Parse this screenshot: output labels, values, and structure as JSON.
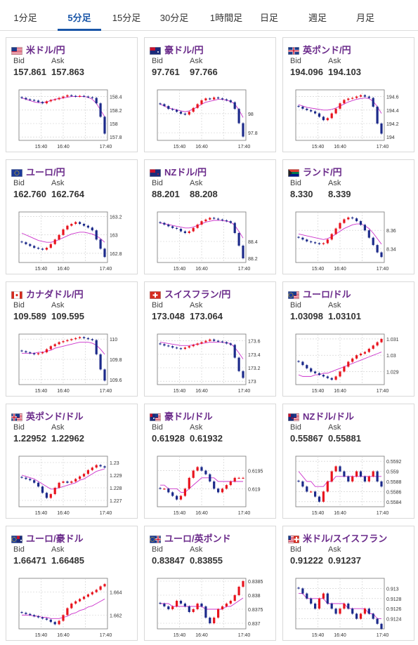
{
  "tabs": [
    "1分足",
    "5分足",
    "15分足",
    "30分足",
    "1時間足",
    "日足",
    "週足",
    "月足"
  ],
  "active_tab": 1,
  "labels": {
    "bid": "Bid",
    "ask": "Ask"
  },
  "x_ticks": [
    "15:40",
    "16:40",
    "17:40"
  ],
  "colors": {
    "up": "#e8141e",
    "down": "#1c2a8a",
    "ma": "#cc33cc",
    "ma2": "#4a90c8",
    "pair_text": "#6a2a8a",
    "active_tab": "#1a56a8"
  },
  "cards": [
    {
      "pair": "米ドル/円",
      "flag": "us-flag",
      "bid": "157.861",
      "ask": "157.863",
      "chart_data": {
        "type": "candlestick",
        "y_ticks": [
          "158.4",
          "158.2",
          "158",
          "157.8"
        ],
        "ylim": [
          157.75,
          158.5
        ],
        "ticks_v": [
          158.4,
          158.2,
          158,
          157.8
        ],
        "close": [
          158.38,
          158.36,
          158.35,
          158.34,
          158.32,
          158.3,
          158.33,
          158.35,
          158.36,
          158.38,
          158.4,
          158.42,
          158.41,
          158.4,
          158.41,
          158.4,
          158.39,
          158.38,
          158.3,
          158.1,
          157.85
        ],
        "ma": [
          158.38,
          158.36,
          158.34,
          158.32,
          158.31,
          158.31,
          158.32,
          158.34,
          158.36,
          158.37,
          158.38,
          158.39,
          158.4,
          158.4,
          158.4,
          158.4,
          158.39,
          158.36,
          158.3,
          158.2,
          158.1
        ]
      }
    },
    {
      "pair": "豪ドル/円",
      "flag": "au-flag",
      "bid": "97.761",
      "ask": "97.766",
      "chart_data": {
        "type": "candlestick",
        "y_ticks": [
          "98",
          "97.8"
        ],
        "ylim": [
          97.72,
          98.25
        ],
        "ticks_v": [
          98,
          97.8
        ],
        "close": [
          98.1,
          98.08,
          98.05,
          98.04,
          98.02,
          98.0,
          97.99,
          98.02,
          98.06,
          98.1,
          98.14,
          98.16,
          98.15,
          98.17,
          98.16,
          98.15,
          98.14,
          98.12,
          98.05,
          97.9,
          97.76
        ],
        "ma": [
          98.1,
          98.08,
          98.06,
          98.05,
          98.04,
          98.03,
          98.02,
          98.03,
          98.05,
          98.07,
          98.1,
          98.12,
          98.13,
          98.14,
          98.15,
          98.15,
          98.14,
          98.13,
          98.1,
          98.04,
          97.96
        ]
      }
    },
    {
      "pair": "英ポンド/円",
      "flag": "gb-flag",
      "bid": "194.096",
      "ask": "194.103",
      "chart_data": {
        "type": "candlestick",
        "y_ticks": [
          "194.6",
          "194.4",
          "194.2",
          "194"
        ],
        "ylim": [
          193.95,
          194.7
        ],
        "ticks_v": [
          194.6,
          194.4,
          194.2,
          194
        ],
        "close": [
          194.45,
          194.42,
          194.4,
          194.38,
          194.35,
          194.3,
          194.25,
          194.28,
          194.35,
          194.42,
          194.5,
          194.55,
          194.57,
          194.58,
          194.6,
          194.62,
          194.6,
          194.58,
          194.45,
          194.2,
          194.05
        ],
        "ma": [
          194.48,
          194.46,
          194.44,
          194.43,
          194.42,
          194.41,
          194.4,
          194.4,
          194.41,
          194.43,
          194.46,
          194.49,
          194.52,
          194.54,
          194.56,
          194.57,
          194.58,
          194.57,
          194.53,
          194.45,
          194.35
        ]
      }
    },
    {
      "pair": "ユーロ/円",
      "flag": "eu-flag",
      "bid": "162.760",
      "ask": "162.764",
      "chart_data": {
        "type": "candlestick",
        "y_ticks": [
          "163.2",
          "163",
          "162.8"
        ],
        "ylim": [
          162.7,
          163.25
        ],
        "ticks_v": [
          163.2,
          163,
          162.8
        ],
        "close": [
          162.92,
          162.9,
          162.88,
          162.86,
          162.85,
          162.84,
          162.86,
          162.9,
          162.95,
          163.0,
          163.06,
          163.1,
          163.12,
          163.14,
          163.12,
          163.1,
          163.08,
          163.05,
          162.95,
          162.85,
          162.76
        ],
        "ma": [
          163.02,
          163.0,
          162.98,
          162.96,
          162.94,
          162.93,
          162.92,
          162.92,
          162.93,
          162.95,
          162.97,
          162.99,
          163.01,
          163.02,
          163.03,
          163.03,
          163.02,
          163.01,
          162.99,
          162.96,
          162.92
        ]
      }
    },
    {
      "pair": "NZドル/円",
      "flag": "nz-flag",
      "bid": "88.201",
      "ask": "88.208",
      "chart_data": {
        "type": "candlestick",
        "y_ticks": [
          "88.4",
          "88.2"
        ],
        "ylim": [
          88.15,
          88.75
        ],
        "ticks_v": [
          88.4,
          88.2
        ],
        "close": [
          88.62,
          88.6,
          88.58,
          88.56,
          88.55,
          88.52,
          88.5,
          88.52,
          88.56,
          88.6,
          88.64,
          88.66,
          88.68,
          88.67,
          88.66,
          88.65,
          88.64,
          88.62,
          88.5,
          88.35,
          88.2
        ],
        "ma": [
          88.62,
          88.61,
          88.6,
          88.59,
          88.58,
          88.57,
          88.56,
          88.56,
          88.57,
          88.59,
          88.61,
          88.63,
          88.64,
          88.65,
          88.65,
          88.65,
          88.64,
          88.63,
          88.59,
          88.52,
          88.44
        ]
      }
    },
    {
      "pair": "ランド/円",
      "flag": "za-flag",
      "bid": "8.330",
      "ask": "8.339",
      "chart_data": {
        "type": "candlestick",
        "y_ticks": [
          "8.36",
          "8.34"
        ],
        "ylim": [
          8.325,
          8.38
        ],
        "ticks_v": [
          8.36,
          8.34
        ],
        "close": [
          8.352,
          8.35,
          8.348,
          8.347,
          8.346,
          8.345,
          8.346,
          8.35,
          8.356,
          8.362,
          8.368,
          8.372,
          8.374,
          8.373,
          8.37,
          8.366,
          8.36,
          8.352,
          8.344,
          8.336,
          8.331
        ],
        "ma": [
          8.356,
          8.355,
          8.354,
          8.353,
          8.352,
          8.351,
          8.35,
          8.351,
          8.353,
          8.356,
          8.359,
          8.362,
          8.364,
          8.366,
          8.367,
          8.367,
          8.365,
          8.362,
          8.357,
          8.351,
          8.345
        ]
      }
    },
    {
      "pair": "カナダドル/円",
      "flag": "ca-flag",
      "bid": "109.589",
      "ask": "109.595",
      "chart_data": {
        "type": "candlestick",
        "y_ticks": [
          "110",
          "109.8",
          "109.6"
        ],
        "ylim": [
          109.55,
          110.05
        ],
        "ticks_v": [
          110,
          109.8,
          109.6
        ],
        "close": [
          109.88,
          109.87,
          109.86,
          109.85,
          109.86,
          109.87,
          109.9,
          109.93,
          109.95,
          109.97,
          109.98,
          109.99,
          110.0,
          110.01,
          110.02,
          110.01,
          110.0,
          109.99,
          109.85,
          109.7,
          109.59
        ],
        "ma": [
          109.86,
          109.86,
          109.86,
          109.86,
          109.87,
          109.87,
          109.88,
          109.89,
          109.91,
          109.92,
          109.93,
          109.94,
          109.95,
          109.96,
          109.97,
          109.97,
          109.97,
          109.96,
          109.94,
          109.9,
          109.85
        ]
      }
    },
    {
      "pair": "スイスフラン/円",
      "flag": "ch-flag",
      "bid": "173.048",
      "ask": "173.064",
      "chart_data": {
        "type": "candlestick",
        "y_ticks": [
          "173.6",
          "173.4",
          "173.2",
          "173"
        ],
        "ylim": [
          172.95,
          173.7
        ],
        "ticks_v": [
          173.6,
          173.4,
          173.2,
          173
        ],
        "close": [
          173.55,
          173.53,
          173.52,
          173.5,
          173.49,
          173.48,
          173.5,
          173.52,
          173.54,
          173.56,
          173.58,
          173.6,
          173.62,
          173.6,
          173.59,
          173.58,
          173.56,
          173.54,
          173.35,
          173.15,
          173.05
        ],
        "ma": [
          173.58,
          173.57,
          173.56,
          173.55,
          173.54,
          173.53,
          173.53,
          173.53,
          173.54,
          173.55,
          173.56,
          173.57,
          173.58,
          173.58,
          173.58,
          173.58,
          173.57,
          173.56,
          173.5,
          173.42,
          173.33
        ]
      }
    },
    {
      "pair": "ユーロ/ドル",
      "flag": "eu-us-flag",
      "bid": "1.03098",
      "ask": "1.03101",
      "chart_data": {
        "type": "candlestick",
        "y_ticks": [
          "1.031",
          "1.03",
          "1.029"
        ],
        "ylim": [
          1.0282,
          1.0313
        ],
        "ticks_v": [
          1.031,
          1.03,
          1.029
        ],
        "close": [
          1.0296,
          1.0294,
          1.0292,
          1.029,
          1.0289,
          1.0288,
          1.0287,
          1.0286,
          1.0285,
          1.0287,
          1.029,
          1.0293,
          1.0296,
          1.0298,
          1.03,
          1.0301,
          1.0302,
          1.0304,
          1.0306,
          1.0308,
          1.031
        ],
        "ma": [
          1.0288,
          1.0287,
          1.0287,
          1.0287,
          1.0288,
          1.0288,
          1.0289,
          1.0289,
          1.029,
          1.0291,
          1.0292,
          1.0293,
          1.0294,
          1.0295,
          1.0296,
          1.0297,
          1.0298,
          1.0299,
          1.03,
          1.0301,
          1.0302
        ]
      }
    },
    {
      "pair": "英ポンド/ドル",
      "flag": "gb-us-flag",
      "bid": "1.22952",
      "ask": "1.22962",
      "chart_data": {
        "type": "candlestick",
        "y_ticks": [
          "1.23",
          "1.229",
          "1.228",
          "1.227"
        ],
        "ylim": [
          1.2265,
          1.2305
        ],
        "ticks_v": [
          1.23,
          1.229,
          1.228,
          1.227
        ],
        "close": [
          1.2288,
          1.2287,
          1.2286,
          1.2284,
          1.2281,
          1.2276,
          1.2272,
          1.2275,
          1.228,
          1.2284,
          1.2285,
          1.2284,
          1.2285,
          1.2287,
          1.2289,
          1.2291,
          1.2294,
          1.2296,
          1.2298,
          1.2297,
          1.2296
        ],
        "ma": [
          1.229,
          1.2289,
          1.2288,
          1.2287,
          1.2285,
          1.2283,
          1.2281,
          1.2279,
          1.2279,
          1.228,
          1.2281,
          1.2282,
          1.2283,
          1.2284,
          1.2286,
          1.2287,
          1.2289,
          1.2291,
          1.2293,
          1.2294,
          1.2295
        ]
      }
    },
    {
      "pair": "豪ドル/ドル",
      "flag": "au-us-flag",
      "bid": "0.61928",
      "ask": "0.61932",
      "chart_data": {
        "type": "candlestick",
        "y_ticks": [
          "0.6195",
          "0.619"
        ],
        "ylim": [
          0.6185,
          0.6199
        ],
        "ticks_v": [
          0.6195,
          0.619
        ],
        "close": [
          0.619,
          0.619,
          0.6189,
          0.6188,
          0.6187,
          0.6188,
          0.619,
          0.6193,
          0.6195,
          0.6196,
          0.6195,
          0.6194,
          0.6192,
          0.619,
          0.6189,
          0.619,
          0.6191,
          0.6192,
          0.6193,
          0.6193,
          0.6193
        ],
        "ma": [
          0.6191,
          0.6191,
          0.619,
          0.619,
          0.619,
          0.6189,
          0.6189,
          0.619,
          0.6191,
          0.6192,
          0.6193,
          0.6193,
          0.6193,
          0.6193,
          0.6192,
          0.6192,
          0.6192,
          0.6192,
          0.6192,
          0.6192,
          0.6192
        ]
      }
    },
    {
      "pair": "NZドル/ドル",
      "flag": "nz-us-flag",
      "bid": "0.55867",
      "ask": "0.55881",
      "chart_data": {
        "type": "candlestick",
        "y_ticks": [
          "0.5592",
          "0.559",
          "0.5588",
          "0.5586",
          "0.5584"
        ],
        "ylim": [
          0.5583,
          0.5593
        ],
        "ticks_v": [
          0.5592,
          0.559,
          0.5588,
          0.5586,
          0.5584
        ],
        "close": [
          0.5588,
          0.5587,
          0.5586,
          0.5586,
          0.5585,
          0.5584,
          0.5586,
          0.5588,
          0.559,
          0.5591,
          0.559,
          0.5589,
          0.5588,
          0.5589,
          0.559,
          0.5589,
          0.5588,
          0.5589,
          0.559,
          0.5588,
          0.5587
        ],
        "ma": [
          0.559,
          0.5589,
          0.5588,
          0.5588,
          0.5587,
          0.5587,
          0.5587,
          0.5588,
          0.5588,
          0.5589,
          0.5589,
          0.5589,
          0.5589,
          0.5589,
          0.5589,
          0.5589,
          0.5589,
          0.5589,
          0.5589,
          0.5589,
          0.5589
        ]
      }
    },
    {
      "pair": "ユーロ/豪ドル",
      "flag": "eu-au-flag",
      "bid": "1.66471",
      "ask": "1.66485",
      "chart_data": {
        "type": "candlestick",
        "y_ticks": [
          "1.664",
          "1.662"
        ],
        "ylim": [
          1.6608,
          1.6652
        ],
        "ticks_v": [
          1.664,
          1.662
        ],
        "close": [
          1.6622,
          1.6621,
          1.662,
          1.6619,
          1.6618,
          1.6617,
          1.6616,
          1.6614,
          1.6612,
          1.6615,
          1.662,
          1.6626,
          1.663,
          1.6632,
          1.6634,
          1.6636,
          1.6638,
          1.664,
          1.6642,
          1.6645,
          1.6647
        ],
        "ma": [
          1.662,
          1.662,
          1.662,
          1.6619,
          1.6619,
          1.6618,
          1.6618,
          1.6617,
          1.6617,
          1.6617,
          1.6618,
          1.6619,
          1.6621,
          1.6622,
          1.6624,
          1.6625,
          1.6627,
          1.6628,
          1.663,
          1.6632,
          1.6634
        ]
      }
    },
    {
      "pair": "ユーロ/英ポンド",
      "flag": "eu-gb-flag",
      "bid": "0.83847",
      "ask": "0.83855",
      "chart_data": {
        "type": "candlestick",
        "y_ticks": [
          "0.8385",
          "0.838",
          "0.8375",
          "0.837"
        ],
        "ylim": [
          0.8368,
          0.8386
        ],
        "ticks_v": [
          0.8385,
          0.838,
          0.8375,
          0.837
        ],
        "close": [
          0.8377,
          0.8376,
          0.8375,
          0.8376,
          0.8378,
          0.8377,
          0.8376,
          0.8374,
          0.8375,
          0.8377,
          0.8376,
          0.8372,
          0.837,
          0.8372,
          0.8375,
          0.8376,
          0.8377,
          0.8378,
          0.838,
          0.8383,
          0.8385
        ],
        "ma": [
          0.8377,
          0.8377,
          0.8377,
          0.8376,
          0.8376,
          0.8376,
          0.8376,
          0.8376,
          0.8376,
          0.8376,
          0.8376,
          0.8375,
          0.8375,
          0.8375,
          0.8375,
          0.8375,
          0.8376,
          0.8376,
          0.8377,
          0.8378,
          0.8379
        ]
      }
    },
    {
      "pair": "米ドル/スイスフラン",
      "flag": "us-ch-flag",
      "bid": "0.91222",
      "ask": "0.91237",
      "chart_data": {
        "type": "candlestick",
        "y_ticks": [
          "0.913",
          "0.9128",
          "0.9126",
          "0.9124"
        ],
        "ylim": [
          0.9122,
          0.9132
        ],
        "ticks_v": [
          0.913,
          0.9128,
          0.9126,
          0.9124
        ],
        "close": [
          0.913,
          0.9129,
          0.9128,
          0.9127,
          0.9126,
          0.9128,
          0.9129,
          0.9127,
          0.9126,
          0.9125,
          0.9126,
          0.9127,
          0.9126,
          0.9125,
          0.9124,
          0.9125,
          0.9126,
          0.9125,
          0.9124,
          0.9123,
          0.9122
        ],
        "ma": [
          0.9129,
          0.9129,
          0.9128,
          0.9128,
          0.9128,
          0.9128,
          0.9128,
          0.9127,
          0.9127,
          0.9127,
          0.9127,
          0.9127,
          0.9126,
          0.9126,
          0.9126,
          0.9126,
          0.9126,
          0.9125,
          0.9125,
          0.9124,
          0.9124
        ]
      }
    }
  ]
}
